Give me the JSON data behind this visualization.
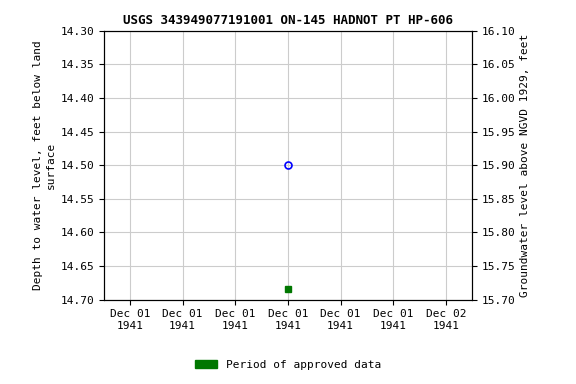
{
  "title": "USGS 343949077191001 ON-145 HADNOT PT HP-606",
  "ylabel_left": "Depth to water level, feet below land\nsurface",
  "ylabel_right": "Groundwater level above NGVD 1929, feet",
  "ylim_left_top": 14.3,
  "ylim_left_bottom": 14.7,
  "ylim_right_top": 16.1,
  "ylim_right_bottom": 15.7,
  "yticks_left": [
    14.3,
    14.35,
    14.4,
    14.45,
    14.5,
    14.55,
    14.6,
    14.65,
    14.7
  ],
  "yticks_right": [
    16.1,
    16.05,
    16.0,
    15.95,
    15.9,
    15.85,
    15.8,
    15.75,
    15.7
  ],
  "data_point_y_circle": 14.5,
  "data_point_y_square": 14.685,
  "circle_color": "#0000ff",
  "square_color": "#007700",
  "legend_label": "Period of approved data",
  "legend_color": "#007700",
  "grid_color": "#cccccc",
  "background_color": "#ffffff",
  "font_family": "monospace",
  "title_fontsize": 9,
  "label_fontsize": 8,
  "tick_fontsize": 8,
  "x_tick_positions": [
    -3,
    -2,
    -1,
    0,
    1,
    2,
    3
  ],
  "x_tick_labels": [
    "Dec 01\n1941",
    "Dec 01\n1941",
    "Dec 01\n1941",
    "Dec 01\n1941",
    "Dec 01\n1941",
    "Dec 01\n1941",
    "Dec 02\n1941"
  ],
  "xlim": [
    -3.5,
    3.5
  ],
  "data_x": 0
}
